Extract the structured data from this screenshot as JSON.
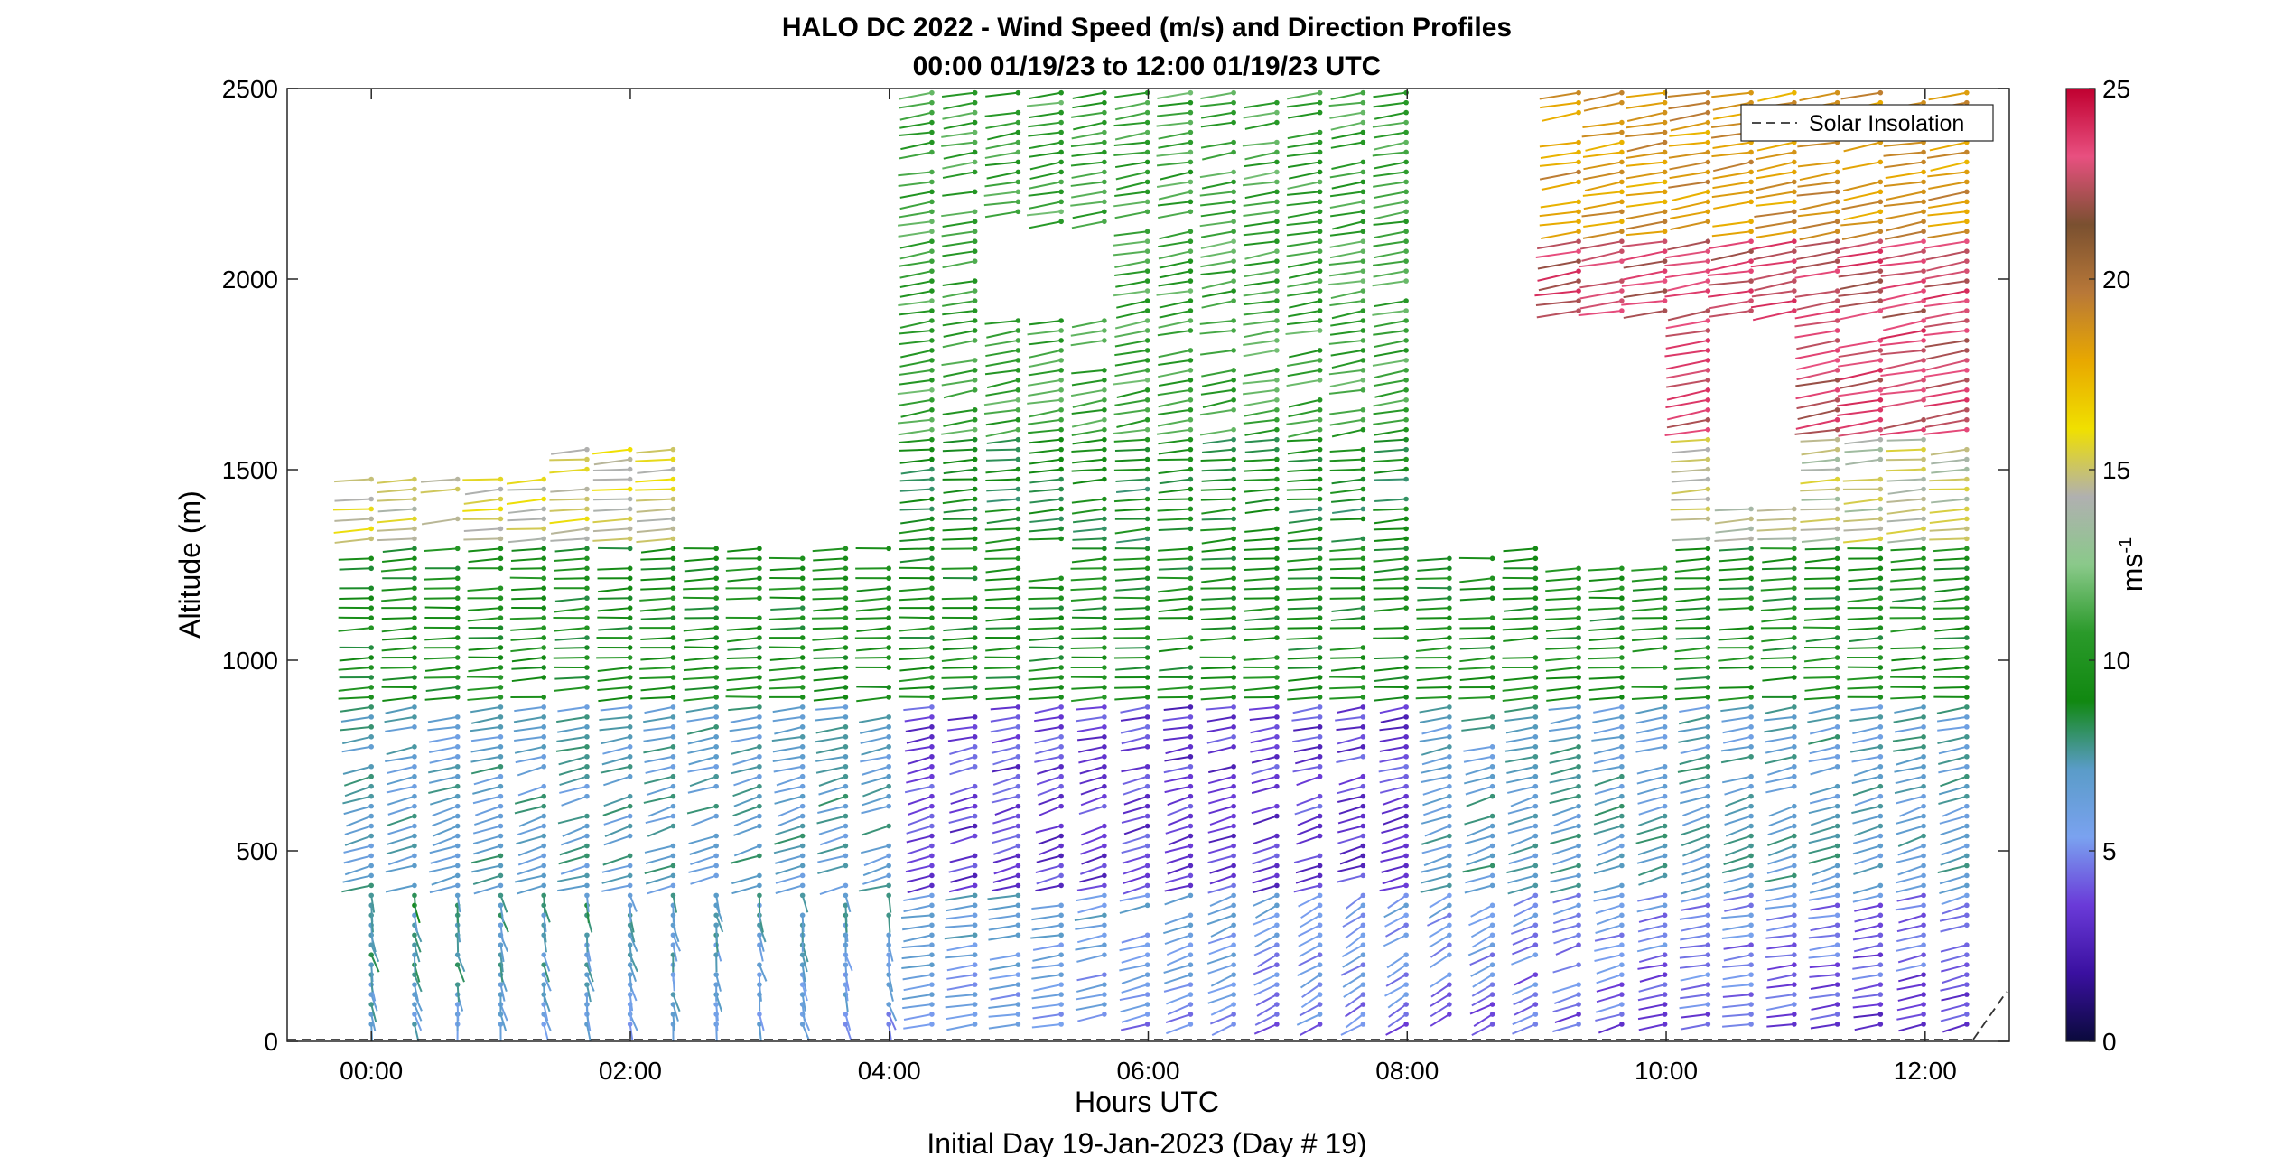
{
  "chart_data": {
    "type": "wind-barb-profile",
    "title": "HALO DC 2022 - Wind Speed (m/s) and Direction Profiles",
    "subtitle": "00:00 01/19/23 to 12:00 01/19/23  UTC",
    "xlabel": "Hours UTC",
    "ylabel": "Altitude (m)",
    "footer": "Initial Day 19-Jan-2023 (Day # 19)",
    "x_ticks": [
      "00:00",
      "02:00",
      "04:00",
      "06:00",
      "08:00",
      "10:00",
      "12:00"
    ],
    "x_tick_hours": [
      0,
      2,
      4,
      6,
      8,
      10,
      12
    ],
    "xlim": [
      -0.65,
      12.65
    ],
    "y_ticks": [
      "0",
      "500",
      "1000",
      "1500",
      "2000",
      "2500"
    ],
    "ylim": [
      0,
      2500
    ],
    "colorbar": {
      "label": "ms",
      "label_superscript": "-1",
      "ticks": [
        "0",
        "5",
        "10",
        "15",
        "20",
        "25"
      ],
      "range": [
        0,
        25
      ],
      "colors": [
        "#0a0a3c",
        "#3a10a0",
        "#6a3ad8",
        "#7aa2f0",
        "#5a9cc8",
        "#118811",
        "#2a9a2a",
        "#8ac98a",
        "#b0b0b0",
        "#f0e000",
        "#e8a800",
        "#b87838",
        "#7a5030",
        "#e85080",
        "#c00030"
      ]
    },
    "legend": {
      "entries": [
        "Solar Insolation"
      ],
      "placement": "top-right"
    },
    "time_step_hours": 0.333,
    "altitude_step_m": 26,
    "profiles_note": "Wind barbs at ~20-min intervals from 00:00 to 12:20 UTC; speeds 0-25 m/s colored by colorbar.",
    "speed_regimes": [
      {
        "layer": "0-400 m",
        "early_speed_ms": 6,
        "late_speed_ms": 3,
        "dir_deg_early": 0,
        "dir_deg_late": 290
      },
      {
        "layer": "400-900 m",
        "early_speed_ms": 8,
        "late_speed_ms": 6,
        "dir_deg": 300
      },
      {
        "layer": "900-1300 m",
        "speed_ms": 9,
        "dir_deg": 275
      },
      {
        "layer": "1300-1500 m (00:00-02:30)",
        "speed_ms": 15,
        "dir_deg": 280
      },
      {
        "layer": "1600-2500 m (04:00-08:00)",
        "speed_ms": 10,
        "dir_deg": 280
      },
      {
        "layer": "2000-2500 m (09:00-12:00)",
        "speed_ms": 19,
        "dir_deg": 250
      }
    ]
  }
}
